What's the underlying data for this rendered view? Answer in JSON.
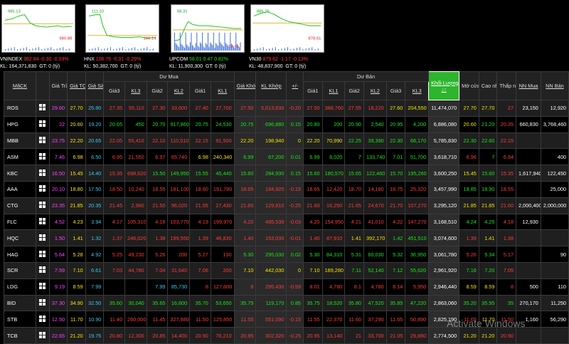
{
  "indices": [
    {
      "name": "VNINDEX",
      "value": "982.84",
      "change": "-0.30",
      "pct": "-0.03%",
      "kl": "KL: 164,371,830",
      "gt": "GT: 0 (tỷ)",
      "hi": "985.13",
      "lo": "980.88",
      "dir": "down",
      "color": "#ff3b3b"
    },
    {
      "name": "HNX",
      "value": "106.76",
      "change": "-0.31",
      "pct": "-0.29%",
      "kl": "KL: 50,382,700",
      "gt": "GT: 0 (tỷ)",
      "hi": "111.10",
      "lo": "106.14",
      "dir": "down",
      "color": "#ff3b3b"
    },
    {
      "name": "UPCOM",
      "value": "58.01",
      "change": "0.47",
      "pct": "0.82%",
      "kl": "KL: 11,900,300",
      "gt": "GT: 0 (tỷ)",
      "hi": "58.31",
      "lo": "57.41",
      "dir": "up",
      "color": "#19e619"
    },
    {
      "name": "VN30",
      "value": "879.62",
      "change": "-1.17",
      "pct": "-0.13%",
      "kl": "KL: 48,837,900",
      "gt": "GT: 0 (tỷ)",
      "hi": "885.26",
      "lo": "878.61",
      "dir": "down",
      "color": "#ff3b3b"
    }
  ],
  "columns": {
    "mack": "MãCK",
    "tran": "Giá Trần",
    "tc": "Giá TC",
    "san": "Giá Sàn",
    "du_mua": "Dư Mua",
    "du_ban": "Dư Bán",
    "gia3": "Giá3",
    "kl3": "KL3",
    "gia2": "Giá2",
    "kl2": "KL2",
    "gia1": "Giá1",
    "kl1": "KL1",
    "gia_khop": "Giá Khớp",
    "kl_khop": "KL Khớp",
    "pm": "+/-",
    "khoi_luong": "Khối Lượng",
    "mo_cua": "Mở cửa",
    "cao_nhat": "Cao nhất",
    "thap_nhat": "Thấp nhất",
    "nn_mua": "NN Mua",
    "nn_ban": "NN Bán"
  },
  "rows": [
    {
      "sym": "ROS",
      "tran": "29.60",
      "tc": "27.70",
      "san": "25.80",
      "b3": "27.35",
      "bk3": "55,110",
      "b2": "27.30",
      "bk2": "33,600",
      "b1": "27.40",
      "bk1": "27,700",
      "p": "27.50",
      "kl": "5,613,630",
      "pm": "-0.20",
      "s1": "27.50",
      "sk1": "388,760",
      "s2": "27.55",
      "sk2": "18,220",
      "s3": "27.60",
      "sk3": "204,550",
      "vol": "11,474,070",
      "open": "27.70",
      "high": "27.70",
      "low": "27",
      "nnm": "23,150",
      "nnb": "12,920",
      "c": {
        "b3": "red",
        "b2": "red",
        "b1": "red",
        "p": "red",
        "s1": "red",
        "s2": "red",
        "s3": "yellow",
        "open": "yellow",
        "high": "yellow",
        "low": "red"
      }
    },
    {
      "sym": "HPG",
      "tran": "22",
      "tc": "20.60",
      "san": "19.20",
      "b3": "20.65",
      "bk3": "450",
      "b2": "20.70",
      "bk2": "917,860",
      "b1": "20.75",
      "bk1": "24,530",
      "p": "20.75",
      "kl": "696,880",
      "pm": "0.15",
      "s1": "20.80",
      "sk1": "200",
      "s2": "20.90",
      "sk2": "2,540",
      "s3": "20.95",
      "sk3": "4,200",
      "vol": "6,886,080",
      "open": "20.60",
      "high": "21.20",
      "low": "20.35",
      "nnm": "660,830",
      "nnb": "3,768,460",
      "c": {
        "b3": "green",
        "b2": "green",
        "b1": "green",
        "p": "green",
        "s1": "green",
        "s2": "green",
        "s3": "green",
        "open": "yellow",
        "high": "green",
        "low": "red"
      }
    },
    {
      "sym": "MBB",
      "tran": "23.75",
      "tc": "22.20",
      "san": "20.65",
      "b3": "22.05",
      "bk3": "55,410",
      "b2": "22.10",
      "bk2": "110,510",
      "b1": "22.15",
      "bk1": "91,500",
      "p": "22.20",
      "kl": "198,940",
      "pm": "0",
      "s1": "22.20",
      "sk1": "70,990",
      "s2": "22.25",
      "sk2": "39,390",
      "s3": "22.30",
      "sk3": "68,170",
      "vol": "5,785,830",
      "open": "22.30",
      "high": "22.60",
      "low": "22.15",
      "nnm": "",
      "nnb": "",
      "c": {
        "b3": "red",
        "b2": "red",
        "b1": "red",
        "p": "yellow",
        "s1": "yellow",
        "s2": "green",
        "s3": "green",
        "open": "green",
        "high": "green",
        "low": "red"
      }
    },
    {
      "sym": "ASM",
      "tran": "7.46",
      "tc": "6.98",
      "san": "6.50",
      "b3": "6.95",
      "bk3": "21,550",
      "b2": "6.97",
      "bk2": "65,740",
      "b1": "6.98",
      "bk1": "240,340",
      "p": "6.99",
      "kl": "67,200",
      "pm": "0.01",
      "s1": "6.99",
      "sk1": "8,020",
      "s2": "7",
      "sk2": "133,740",
      "s3": "7.01",
      "sk3": "51,700",
      "vol": "3,618,710",
      "open": "6.96",
      "high": "7",
      "low": "6.94",
      "nnm": "",
      "nnb": "400",
      "c": {
        "b3": "red",
        "b2": "red",
        "b1": "yellow",
        "p": "green",
        "s1": "green",
        "s2": "green",
        "s3": "green",
        "open": "red",
        "high": "green",
        "low": "red"
      }
    },
    {
      "sym": "KBC",
      "tran": "16.50",
      "tc": "15.45",
      "san": "14.40",
      "b3": "15.35",
      "bk3": "698,620",
      "b2": "15.50",
      "bk2": "149,950",
      "b1": "15.55",
      "bk1": "45,440",
      "p": "15.60",
      "kl": "284,930",
      "pm": "0.15",
      "s1": "15.60",
      "sk1": "180,570",
      "s2": "15.65",
      "sk2": "122,460",
      "s3": "15.70",
      "sk3": "195,260",
      "vol": "3,600,250",
      "open": "15.45",
      "high": "15.60",
      "low": "15.35",
      "nnm": "1,617,940",
      "nnb": "122,450",
      "c": {
        "b3": "red",
        "b2": "green",
        "b1": "green",
        "p": "green",
        "s1": "green",
        "s2": "green",
        "s3": "green",
        "open": "yellow",
        "high": "green",
        "low": "red"
      }
    },
    {
      "sym": "AAA",
      "tran": "20.10",
      "tc": "18.80",
      "san": "17.50",
      "b3": "18.50",
      "bk3": "10,240",
      "b2": "18.55",
      "bk2": "181,100",
      "b1": "18.60",
      "bk1": "191,780",
      "p": "18.65",
      "kl": "184,920",
      "pm": "-0.15",
      "s1": "18.65",
      "sk1": "12,420",
      "s2": "18.70",
      "sk2": "14,180",
      "s3": "18.75",
      "sk3": "25,320",
      "vol": "3,457,990",
      "open": "18.85",
      "high": "18.90",
      "low": "18.55",
      "nnm": "",
      "nnb": "25,000",
      "c": {
        "b3": "red",
        "b2": "red",
        "b1": "red",
        "p": "red",
        "s1": "red",
        "s2": "red",
        "s3": "red",
        "open": "green",
        "high": "green",
        "low": "red"
      }
    },
    {
      "sym": "CTG",
      "tran": "23.35",
      "tc": "21.85",
      "san": "20.35",
      "b3": "21.45",
      "bk3": "2,960",
      "b2": "21.50",
      "bk2": "96,020",
      "b1": "21.55",
      "bk1": "27,430",
      "p": "21.60",
      "kl": "129,810",
      "pm": "-0.25",
      "s1": "21.60",
      "sk1": "16,250",
      "s2": "21.65",
      "sk2": "24,670",
      "s3": "21.70",
      "sk3": "107,270",
      "vol": "3,295,120",
      "open": "21.85",
      "high": "21.85",
      "low": "21.60",
      "nnm": "2,000,400",
      "nnb": "2,000,000",
      "c": {
        "b3": "red",
        "b2": "red",
        "b1": "red",
        "p": "red",
        "s1": "red",
        "s2": "red",
        "s3": "red",
        "open": "yellow",
        "high": "yellow",
        "low": "red"
      }
    },
    {
      "sym": "FLC",
      "tran": "4.52",
      "tc": "4.23",
      "san": "3.94",
      "b3": "4.17",
      "bk3": "105,310",
      "b2": "4.18",
      "bk2": "103,770",
      "b1": "4.19",
      "bk1": "199,970",
      "p": "4.20",
      "kl": "485,530",
      "pm": "-0.03",
      "s1": "4.20",
      "sk1": "154,950",
      "s2": "4.21",
      "sk2": "41,010",
      "s3": "4.22",
      "sk3": "147,270",
      "vol": "3,168,510",
      "open": "4.24",
      "high": "4.25",
      "low": "4.18",
      "nnm": "12,930",
      "nnb": "",
      "c": {
        "b3": "red",
        "b2": "red",
        "b1": "red",
        "p": "red",
        "s1": "red",
        "s2": "red",
        "s3": "red",
        "open": "green",
        "high": "green",
        "low": "red"
      }
    },
    {
      "sym": "HQC",
      "tran": "1.50",
      "tc": "1.41",
      "san": "1.32",
      "b3": "1.37",
      "bk3": "246,020",
      "b2": "1.38",
      "bk2": "199,550",
      "b1": "1.39",
      "bk1": "46,830",
      "p": "1.40",
      "kl": "153,030",
      "pm": "-0.01",
      "s1": "1.40",
      "sk1": "87,910",
      "s2": "1.41",
      "sk2": "392,170",
      "s3": "1.42",
      "sk3": "451,510",
      "vol": "3,074,600",
      "open": "1.39",
      "high": "1.41",
      "low": "1.38",
      "nnm": "",
      "nnb": "",
      "c": {
        "b3": "red",
        "b2": "red",
        "b1": "red",
        "p": "red",
        "s1": "red",
        "s2": "yellow",
        "s3": "green",
        "open": "red",
        "high": "yellow",
        "low": "red"
      }
    },
    {
      "sym": "HAG",
      "tran": "5.64",
      "tc": "5.28",
      "san": "4.92",
      "b3": "5.25",
      "bk3": "49,230",
      "b2": "5.26",
      "bk2": "200",
      "b1": "5.27",
      "bk1": "130",
      "p": "5.30",
      "kl": "295,030",
      "pm": "0.02",
      "s1": "5.30",
      "sk1": "84,310",
      "s2": "5.31",
      "sk2": "60,030",
      "s3": "5.32",
      "sk3": "36,950",
      "vol": "3,061,780",
      "open": "5.26",
      "high": "5.34",
      "low": "5.17",
      "nnm": "",
      "nnb": "90",
      "c": {
        "b3": "red",
        "b2": "red",
        "b1": "red",
        "p": "green",
        "s1": "green",
        "s2": "green",
        "s3": "green",
        "open": "red",
        "high": "green",
        "low": "red"
      }
    },
    {
      "sym": "SCR",
      "tran": "7.59",
      "tc": "7.10",
      "san": "6.61",
      "b3": "7.03",
      "bk3": "44,780",
      "b2": "7.04",
      "bk2": "31,640",
      "b1": "7.06",
      "bk1": "200",
      "p": "7.10",
      "kl": "442,030",
      "pm": "0",
      "s1": "7.10",
      "sk1": "189,280",
      "s2": "7.11",
      "sk2": "52,140",
      "s3": "7.12",
      "sk3": "55,620",
      "vol": "2,961,920",
      "open": "7.16",
      "high": "7.20",
      "low": "7.05",
      "nnm": "",
      "nnb": "",
      "c": {
        "b3": "red",
        "b2": "red",
        "b1": "red",
        "p": "yellow",
        "s1": "yellow",
        "s2": "green",
        "s3": "green",
        "open": "green",
        "high": "green",
        "low": "red"
      }
    },
    {
      "sym": "LDG",
      "tran": "9.19",
      "tc": "8.59",
      "san": "7.99",
      "b3": "",
      "bk3": "",
      "b2": "7.99",
      "bk2": "85,730",
      "b1": "8",
      "bk1": "127,600",
      "p": "8",
      "kl": "295,430",
      "pm": "-0.59",
      "s1": "8.01",
      "sk1": "4,780",
      "s2": "8.1",
      "sk2": "4,780",
      "s3": "8.14",
      "sk3": "5,950",
      "vol": "2,946,440",
      "open": "8.59",
      "high": "8.59",
      "low": "8",
      "nnm": "500",
      "nnb": "110",
      "c": {
        "b3": "red",
        "b2": "cyan",
        "b1": "red",
        "p": "red",
        "s1": "red",
        "s2": "red",
        "s3": "red",
        "open": "yellow",
        "high": "yellow",
        "low": "red"
      }
    },
    {
      "sym": "BID",
      "tran": "37.30",
      "tc": "34.90",
      "san": "32.50",
      "b3": "35.60",
      "bk3": "30,040",
      "b2": "35.65",
      "bk2": "16,600",
      "b1": "35.70",
      "bk1": "53,650",
      "p": "35.75",
      "kl": "119,170",
      "pm": "0.85",
      "s1": "35.75",
      "sk1": "18,520",
      "s2": "35.80",
      "sk2": "47,520",
      "s3": "35.85",
      "sk3": "47,220",
      "vol": "2,863,060",
      "open": "35.20",
      "high": "35.95",
      "low": "35",
      "nnm": "270,170",
      "nnb": "11,250",
      "c": {
        "b3": "green",
        "b2": "green",
        "b1": "green",
        "p": "green",
        "s1": "green",
        "s2": "green",
        "s3": "green",
        "open": "green",
        "high": "green",
        "low": "green"
      }
    },
    {
      "sym": "STB",
      "tran": "12.50",
      "tc": "11.70",
      "san": "10.90",
      "b3": "11.40",
      "bk3": "260,000",
      "b2": "11.45",
      "bk2": "327,880",
      "b1": "11.50",
      "bk1": "125,850",
      "p": "11.55",
      "kl": "551,090",
      "pm": "-0.15",
      "s1": "11.55",
      "sk1": "22,370",
      "s2": "11.60",
      "sk2": "37,290",
      "s3": "11.65",
      "sk3": "50,890",
      "vol": "2,825,190",
      "open": "11.65",
      "high": "11.70",
      "low": "11.50",
      "nnm": "1,160",
      "nnb": "56,290",
      "c": {
        "b3": "red",
        "b2": "red",
        "b1": "red",
        "p": "red",
        "s1": "red",
        "s2": "red",
        "s3": "red",
        "open": "red",
        "high": "yellow",
        "low": "red"
      }
    },
    {
      "sym": "TCB",
      "tran": "22.65",
      "tc": "21.20",
      "san": "19.75",
      "b3": "20.80",
      "bk3": "12,300",
      "b2": "20.85",
      "bk2": "14,400",
      "b1": "20.90",
      "bk1": "76,210",
      "p": "20.95",
      "kl": "302,320",
      "pm": "-0.25",
      "s1": "20.95",
      "sk1": "13,140",
      "s2": "21",
      "sk2": "33,700",
      "s3": "21.05",
      "sk3": "29,880",
      "vol": "2,774,500",
      "open": "21.20",
      "high": "21.20",
      "low": "20.90",
      "nnm": "",
      "nnb": "",
      "c": {
        "b3": "red",
        "b2": "red",
        "b1": "red",
        "p": "red",
        "s1": "red",
        "s2": "red",
        "s3": "red",
        "open": "yellow",
        "high": "yellow",
        "low": "red"
      }
    }
  ],
  "watermark": "Activate Windows"
}
